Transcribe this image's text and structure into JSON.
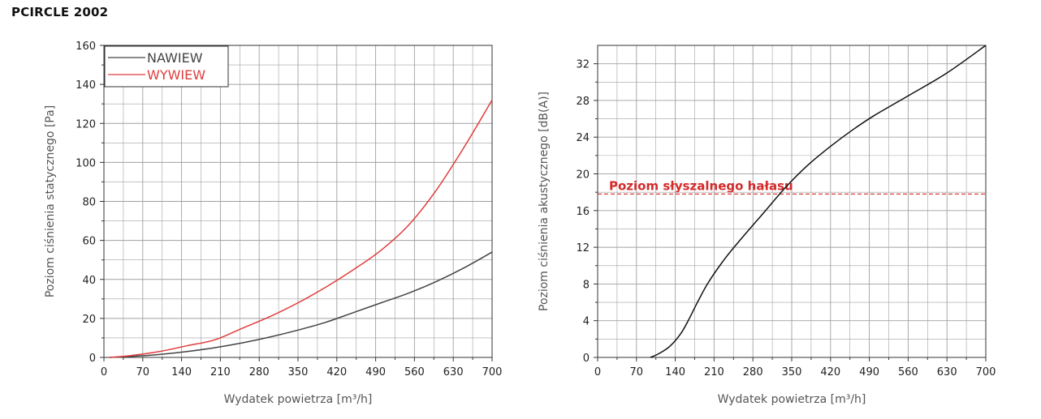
{
  "page": {
    "title": "PCIRCLE 2002"
  },
  "colors": {
    "nawiew": "#444444",
    "wywiew": "#e03c3c",
    "threshold": "#d42a2a",
    "grid": "#a0a0a0"
  },
  "chart_data": [
    {
      "type": "line",
      "title": "",
      "xlabel": "Wydatek powietrza [m³/h]",
      "ylabel": "Poziom ciśnienia statycznego [Pa]",
      "xlim": [
        0,
        700
      ],
      "ylim": [
        0,
        160
      ],
      "grid": true,
      "legend_position": "top-left",
      "x_ticks": [
        "0",
        "70",
        "140",
        "210",
        "280",
        "350",
        "420",
        "490",
        "560",
        "630",
        "700"
      ],
      "y_ticks": [
        "0",
        "20",
        "40",
        "60",
        "80",
        "100",
        "120",
        "140",
        "160"
      ],
      "series": [
        {
          "name": "NAWIEW",
          "color": "#444444",
          "x": [
            10,
            50,
            100,
            150,
            200,
            250,
            300,
            350,
            400,
            450,
            500,
            550,
            600,
            650,
            700
          ],
          "y": [
            0,
            0.5,
            1.5,
            3,
            5,
            7.5,
            10.5,
            14,
            18,
            23,
            28,
            33,
            39,
            46,
            54
          ]
        },
        {
          "name": "WYWIEW",
          "color": "#e03c3c",
          "x": [
            10,
            50,
            100,
            150,
            200,
            250,
            300,
            350,
            400,
            450,
            500,
            550,
            600,
            650,
            700
          ],
          "y": [
            0,
            1,
            3,
            6,
            9,
            15,
            21,
            28,
            36,
            45,
            55,
            68,
            86,
            108,
            132
          ]
        }
      ]
    },
    {
      "type": "line",
      "title": "",
      "xlabel": "Wydatek powietrza [m³/h]",
      "ylabel": "Poziom ciśnienia akustycznego [dB(A)]",
      "xlim": [
        0,
        700
      ],
      "ylim": [
        0,
        34
      ],
      "grid": true,
      "x_ticks": [
        "0",
        "70",
        "140",
        "210",
        "280",
        "350",
        "420",
        "490",
        "560",
        "630",
        "700"
      ],
      "y_ticks": [
        "0",
        "4",
        "8",
        "12",
        "16",
        "20",
        "24",
        "28",
        "32"
      ],
      "series": [
        {
          "color": "#111111",
          "x": [
            95,
            110,
            130,
            150,
            165,
            180,
            200,
            230,
            260,
            300,
            340,
            380,
            420,
            460,
            500,
            560,
            630,
            700
          ],
          "y": [
            0,
            0.4,
            1.2,
            2.6,
            4.2,
            6.0,
            8.2,
            10.8,
            13.0,
            15.8,
            18.6,
            21.0,
            23.0,
            24.8,
            26.4,
            28.5,
            31.0,
            34.0
          ]
        }
      ],
      "annotations": [
        {
          "text": "Poziom słyszalnego hałasu",
          "y": 17.8,
          "style": "dashed",
          "color": "#d42a2a"
        }
      ]
    }
  ]
}
